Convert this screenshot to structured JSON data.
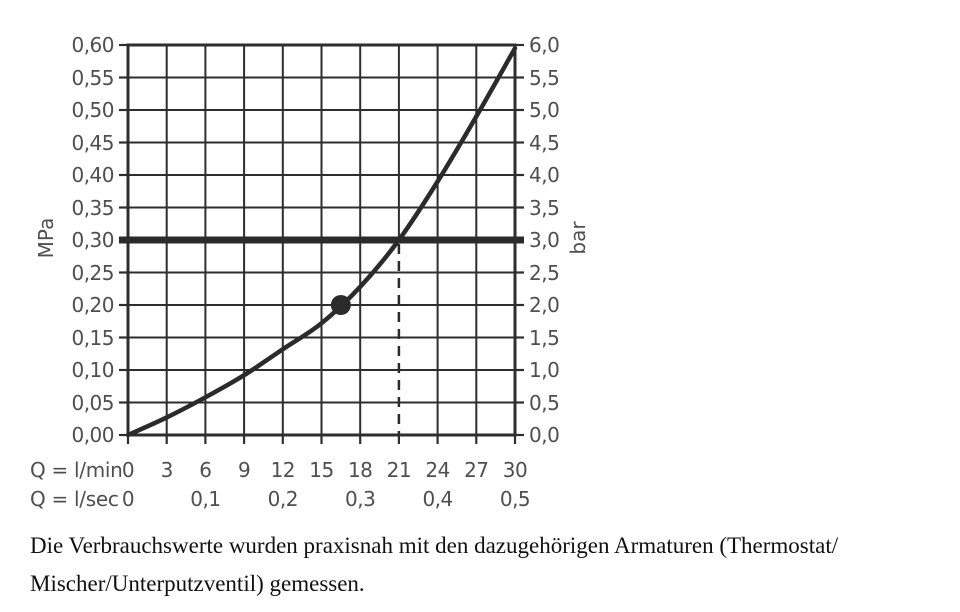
{
  "colors": {
    "line": "#2b2b2b",
    "grid": "#2e2e2e",
    "label": "#4f4f4f",
    "caption": "#111111",
    "background": "#ffffff"
  },
  "chart_data": {
    "type": "line",
    "title": "",
    "grid": true,
    "legend": null,
    "x_axis_primary": {
      "label": "Q = l/min",
      "range": [
        0,
        30
      ],
      "ticks": [
        "0",
        "3",
        "6",
        "9",
        "12",
        "15",
        "18",
        "21",
        "24",
        "27",
        "30"
      ],
      "tick_values": [
        0,
        3,
        6,
        9,
        12,
        15,
        18,
        21,
        24,
        27,
        30
      ]
    },
    "x_axis_secondary": {
      "label": "Q = l/sec",
      "ticks": [
        {
          "x_lmin": 0,
          "label": "0"
        },
        {
          "x_lmin": 6,
          "label": "0,1"
        },
        {
          "x_lmin": 12,
          "label": "0,2"
        },
        {
          "x_lmin": 18,
          "label": "0,3"
        },
        {
          "x_lmin": 24,
          "label": "0,4"
        },
        {
          "x_lmin": 30,
          "label": "0,5"
        }
      ]
    },
    "y_axis_left": {
      "label": "MPa",
      "range": [
        0,
        0.6
      ],
      "ticks": [
        {
          "value": 0.6,
          "label": "0,60"
        },
        {
          "value": 0.55,
          "label": "0,55"
        },
        {
          "value": 0.5,
          "label": "0,50"
        },
        {
          "value": 0.45,
          "label": "0,45"
        },
        {
          "value": 0.4,
          "label": "0,40"
        },
        {
          "value": 0.35,
          "label": "0,35"
        },
        {
          "value": 0.3,
          "label": "0,30"
        },
        {
          "value": 0.25,
          "label": "0,25"
        },
        {
          "value": 0.2,
          "label": "0,20"
        },
        {
          "value": 0.15,
          "label": "0,15"
        },
        {
          "value": 0.1,
          "label": "0,10"
        },
        {
          "value": 0.05,
          "label": "0,05"
        },
        {
          "value": 0.0,
          "label": "0,00"
        }
      ]
    },
    "y_axis_right": {
      "label": "bar",
      "range": [
        0,
        6
      ],
      "ticks": [
        {
          "value_bar": 6.0,
          "label": "6,0"
        },
        {
          "value_bar": 5.5,
          "label": "5,5"
        },
        {
          "value_bar": 5.0,
          "label": "5,0"
        },
        {
          "value_bar": 4.5,
          "label": "4,5"
        },
        {
          "value_bar": 4.0,
          "label": "4,0"
        },
        {
          "value_bar": 3.5,
          "label": "3,5"
        },
        {
          "value_bar": 3.0,
          "label": "3,0"
        },
        {
          "value_bar": 2.5,
          "label": "2,5"
        },
        {
          "value_bar": 2.0,
          "label": "2,0"
        },
        {
          "value_bar": 1.5,
          "label": "1,5"
        },
        {
          "value_bar": 1.0,
          "label": "1,0"
        },
        {
          "value_bar": 0.5,
          "label": "0,5"
        },
        {
          "value_bar": 0.0,
          "label": "0,0"
        }
      ]
    },
    "series": [
      {
        "name": "flow-pressure-curve",
        "points": [
          [
            0,
            0.0
          ],
          [
            3,
            0.027
          ],
          [
            6,
            0.058
          ],
          [
            9,
            0.092
          ],
          [
            12,
            0.132
          ],
          [
            15,
            0.172
          ],
          [
            18,
            0.228
          ],
          [
            21,
            0.3
          ],
          [
            24,
            0.39
          ],
          [
            27,
            0.49
          ],
          [
            30,
            0.595
          ]
        ]
      }
    ],
    "marker_point": {
      "x_lmin": 16.5,
      "y_mpa": 0.2
    },
    "reference_line": {
      "y_mpa": 0.3,
      "y_bar": 3.0
    },
    "dashed_drop_line": {
      "x_lmin": 21,
      "from_y_mpa": 0.3,
      "to_y_mpa": 0.0
    }
  },
  "caption": {
    "line1": "Die Verbrauchswerte wurden praxisnah mit den dazugehörigen Armaturen (Thermostat/",
    "line2": "Mischer/Unterputzventil) gemessen."
  }
}
